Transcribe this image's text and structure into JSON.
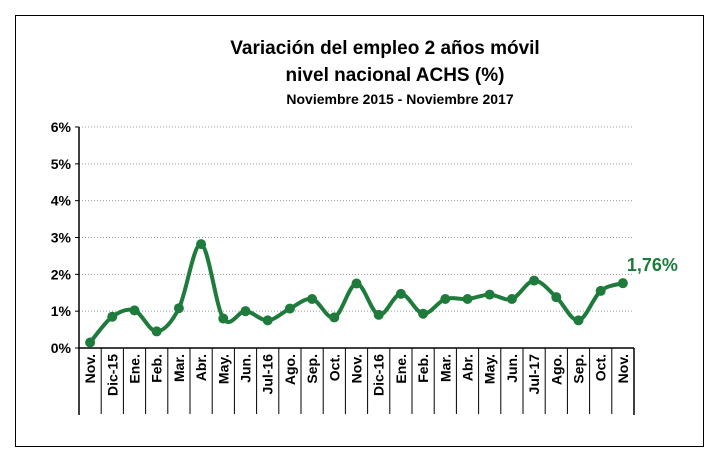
{
  "chart_data": {
    "type": "line",
    "title": [
      "Variación del empleo 2 años móvil",
      "nivel nacional ACHS (%)"
    ],
    "subtitle": "Noviembre 2015 - Noviembre 2017",
    "categories": [
      "Nov.",
      "Dic-15",
      "Ene.",
      "Feb.",
      "Mar.",
      "Abr.",
      "May.",
      "Jun.",
      "Jul-16",
      "Ago.",
      "Sep.",
      "Oct.",
      "Nov.",
      "Dic-16",
      "Ene.",
      "Feb.",
      "Mar.",
      "Abr.",
      "May.",
      "Jun.",
      "Jul-17",
      "Ago.",
      "Sep.",
      "Oct.",
      "Nov."
    ],
    "series": [
      {
        "color": "#1e7b3c",
        "values": [
          0.15,
          0.85,
          1.02,
          0.45,
          1.08,
          2.82,
          0.8,
          1.0,
          0.75,
          1.07,
          1.33,
          0.83,
          1.75,
          0.9,
          1.47,
          0.93,
          1.33,
          1.33,
          1.45,
          1.33,
          1.83,
          1.38,
          0.75,
          1.55,
          1.76
        ],
        "value_labels": [
          null,
          null,
          null,
          null,
          null,
          null,
          null,
          null,
          null,
          null,
          null,
          null,
          null,
          null,
          null,
          null,
          null,
          null,
          null,
          null,
          null,
          null,
          null,
          null,
          "1,76%"
        ]
      }
    ],
    "ylim": [
      0,
      6
    ],
    "yticks": [
      {
        "value": 0,
        "label": "0%"
      },
      {
        "value": 1,
        "label": "1%"
      },
      {
        "value": 2,
        "label": "2%"
      },
      {
        "value": 3,
        "label": "3%"
      },
      {
        "value": 4,
        "label": "4%"
      },
      {
        "value": 5,
        "label": "5%"
      },
      {
        "value": 6,
        "label": "6%"
      }
    ],
    "grid": true
  }
}
